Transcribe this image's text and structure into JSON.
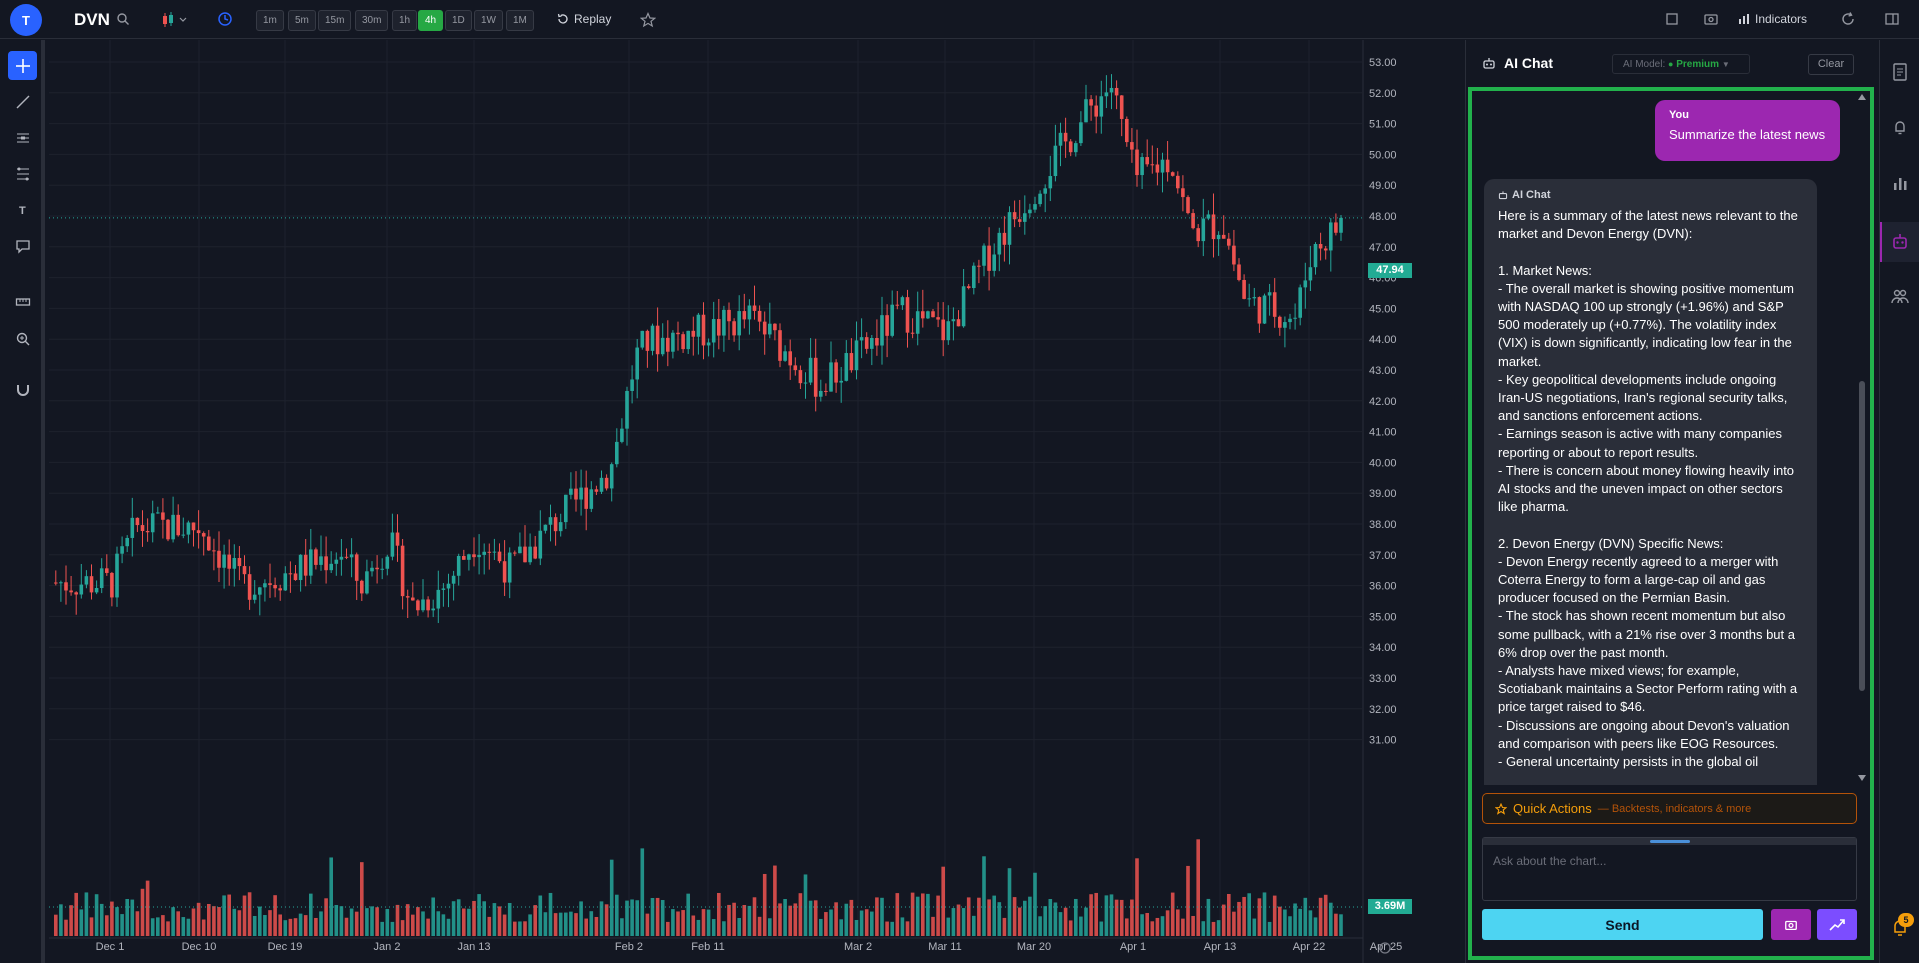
{
  "header": {
    "avatar_letter": "T",
    "symbol": "DVN",
    "timeframes": [
      "1m",
      "5m",
      "15m",
      "30m",
      "1h",
      "4h",
      "1D",
      "1W",
      "1M"
    ],
    "active_timeframe": "4h",
    "replay_label": "Replay",
    "indicators_label": "Indicators"
  },
  "chart": {
    "symbol": "DVN",
    "interval": "4h",
    "price_axis_labels": [
      "53.00",
      "52.00",
      "51.00",
      "50.00",
      "49.00",
      "48.00",
      "47.00",
      "46.00",
      "45.00",
      "44.00",
      "43.00",
      "42.00",
      "41.00",
      "40.00",
      "39.00",
      "38.00",
      "37.00",
      "36.00",
      "35.00",
      "34.00",
      "33.00",
      "32.00",
      "31.00"
    ],
    "date_axis_labels": [
      "Dec 1",
      "Dec 10",
      "Dec 19",
      "Jan 2",
      "Jan 13",
      "Feb 2",
      "Feb 11",
      "Mar 2",
      "Mar 11",
      "Mar 20",
      "Apr 1",
      "Apr 13",
      "Apr 22",
      "Apr 25"
    ],
    "last_price": "47.94",
    "last_volume": "3.69M",
    "colors": {
      "up": "#26a69a",
      "down": "#ef5350",
      "background": "#131722",
      "grid": "#1e222d"
    },
    "price_range": [
      31,
      53.9
    ],
    "trend_anchors": [
      {
        "date": "Dec 1",
        "close": 36.1
      },
      {
        "date": "Dec 5",
        "close": 37.9
      },
      {
        "date": "Dec 10",
        "close": 37.9
      },
      {
        "date": "Dec 15",
        "close": 36.0
      },
      {
        "date": "Dec 19",
        "close": 36.4
      },
      {
        "date": "Dec 26",
        "close": 37.1
      },
      {
        "date": "Dec 29",
        "close": 36.0
      },
      {
        "date": "Jan 2",
        "close": 37.5
      },
      {
        "date": "Jan 6",
        "close": 35.3
      },
      {
        "date": "Jan 9",
        "close": 36.0
      },
      {
        "date": "Jan 13",
        "close": 37.6
      },
      {
        "date": "Jan 16",
        "close": 36.5
      },
      {
        "date": "Jan 21",
        "close": 38.1
      },
      {
        "date": "Jan 27",
        "close": 39.8
      },
      {
        "date": "Jan 30",
        "close": 43.4
      },
      {
        "date": "Feb 2",
        "close": 43.9
      },
      {
        "date": "Feb 11",
        "close": 44.3
      },
      {
        "date": "Feb 16",
        "close": 44.7
      },
      {
        "date": "Feb 24",
        "close": 42.5
      },
      {
        "date": "Mar 2",
        "close": 43.5
      },
      {
        "date": "Mar 6",
        "close": 44.9
      },
      {
        "date": "Mar 11",
        "close": 44.2
      },
      {
        "date": "Mar 16",
        "close": 46.9
      },
      {
        "date": "Mar 20",
        "close": 49.0
      },
      {
        "date": "Mar 25",
        "close": 51.4
      },
      {
        "date": "Mar 27",
        "close": 52.3
      },
      {
        "date": "Apr 1",
        "close": 49.2
      },
      {
        "date": "Apr 6",
        "close": 49.9
      },
      {
        "date": "Apr 9",
        "close": 47.5
      },
      {
        "date": "Apr 13",
        "close": 47.8
      },
      {
        "date": "Apr 15",
        "close": 45.2
      },
      {
        "date": "Apr 17",
        "close": 45.0
      },
      {
        "date": "Apr 20",
        "close": 44.7
      },
      {
        "date": "Apr 22",
        "close": 46.8
      },
      {
        "date": "Apr 24",
        "close": 47.94
      }
    ]
  },
  "ai_chat": {
    "title": "AI Chat",
    "model_label": "AI Model:",
    "model_value": "Premium",
    "clear_label": "Clear",
    "user_name": "You",
    "user_message": "Summarize the latest news",
    "ai_name": "AI Chat",
    "ai_message": "Here is a summary of the latest news relevant to the market and Devon Energy (DVN):\n\n1. Market News:\n- The overall market is showing positive momentum with NASDAQ 100 up strongly (+1.96%) and S&P 500 moderately up (+0.77%). The volatility index (VIX) is down significantly, indicating low fear in the market.\n- Key geopolitical developments include ongoing Iran-US negotiations, Iran's regional security talks, and sanctions enforcement actions.\n- Earnings season is active with many companies reporting or about to report results.\n- There is concern about money flowing heavily into AI stocks and the uneven impact on other sectors like pharma.\n\n2. Devon Energy (DVN) Specific News:\n- Devon Energy recently agreed to a merger with Coterra Energy to form a large-cap oil and gas producer focused on the Permian Basin.\n- The stock has shown recent momentum but also some pullback, with a 21% rise over 3 months but a 6% drop over the past month.\n- Analysts have mixed views; for example, Scotiabank maintains a Sector Perform rating with a price target raised to $46.\n- Discussions are ongoing about Devon's valuation and comparison with peers like EOG Resources.\n- General uncertainty persists in the global oil",
    "quick_actions_title": "Quick Actions",
    "quick_actions_sub": "— Backtests, indicators & more",
    "input_placeholder": "Ask about the chart...",
    "send_label": "Send"
  },
  "notifications": {
    "count": "5"
  }
}
